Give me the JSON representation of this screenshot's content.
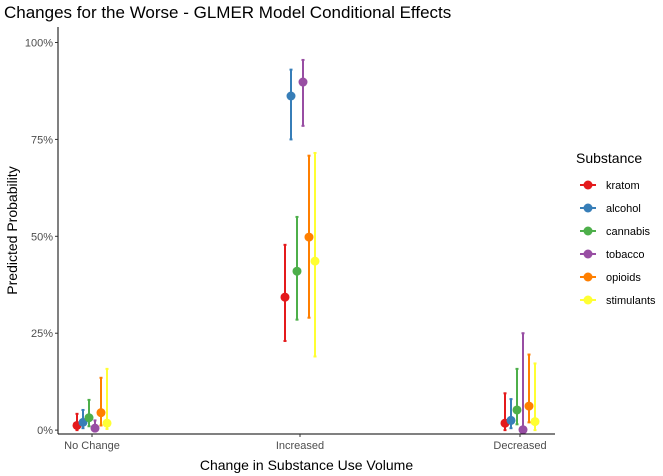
{
  "chart_data": {
    "type": "scatter",
    "title": "Changes for the Worse - GLMER Model Conditional Effects",
    "xlabel": "Change in Substance Use Volume",
    "ylabel": "Predicted Probability",
    "categories": [
      "No Change",
      "Increased",
      "Decreased"
    ],
    "ylim": [
      -0.01,
      1.04
    ],
    "yticks": [
      0,
      0.25,
      0.5,
      0.75,
      1.0
    ],
    "ytick_labels": [
      "0%",
      "25%",
      "50%",
      "75%",
      "100%"
    ],
    "grid": false,
    "legend": {
      "title": "Substance",
      "position": "right"
    },
    "series": [
      {
        "name": "kratom",
        "color": "#e41a1c",
        "values": [
          0.012,
          0.343,
          0.018
        ],
        "lower": [
          0.0,
          0.23,
          0.0
        ],
        "upper": [
          0.042,
          0.478,
          0.095
        ]
      },
      {
        "name": "alcohol",
        "color": "#377eb8",
        "values": [
          0.02,
          0.862,
          0.025
        ],
        "lower": [
          0.005,
          0.75,
          0.005
        ],
        "upper": [
          0.052,
          0.93,
          0.08
        ]
      },
      {
        "name": "cannabis",
        "color": "#4daf4a",
        "values": [
          0.032,
          0.41,
          0.052
        ],
        "lower": [
          0.01,
          0.285,
          0.015
        ],
        "upper": [
          0.078,
          0.55,
          0.158
        ]
      },
      {
        "name": "tobacco",
        "color": "#984ea3",
        "values": [
          0.005,
          0.898,
          0.001
        ],
        "lower": [
          0.0,
          0.785,
          0.0
        ],
        "upper": [
          0.025,
          0.955,
          0.25
        ]
      },
      {
        "name": "opioids",
        "color": "#ff7f00",
        "values": [
          0.045,
          0.498,
          0.062
        ],
        "lower": [
          0.012,
          0.29,
          0.02
        ],
        "upper": [
          0.135,
          0.708,
          0.195
        ]
      },
      {
        "name": "stimulants",
        "color": "#ffff33",
        "values": [
          0.018,
          0.436,
          0.022
        ],
        "lower": [
          0.003,
          0.19,
          0.0
        ],
        "upper": [
          0.158,
          0.715,
          0.172
        ]
      }
    ]
  }
}
